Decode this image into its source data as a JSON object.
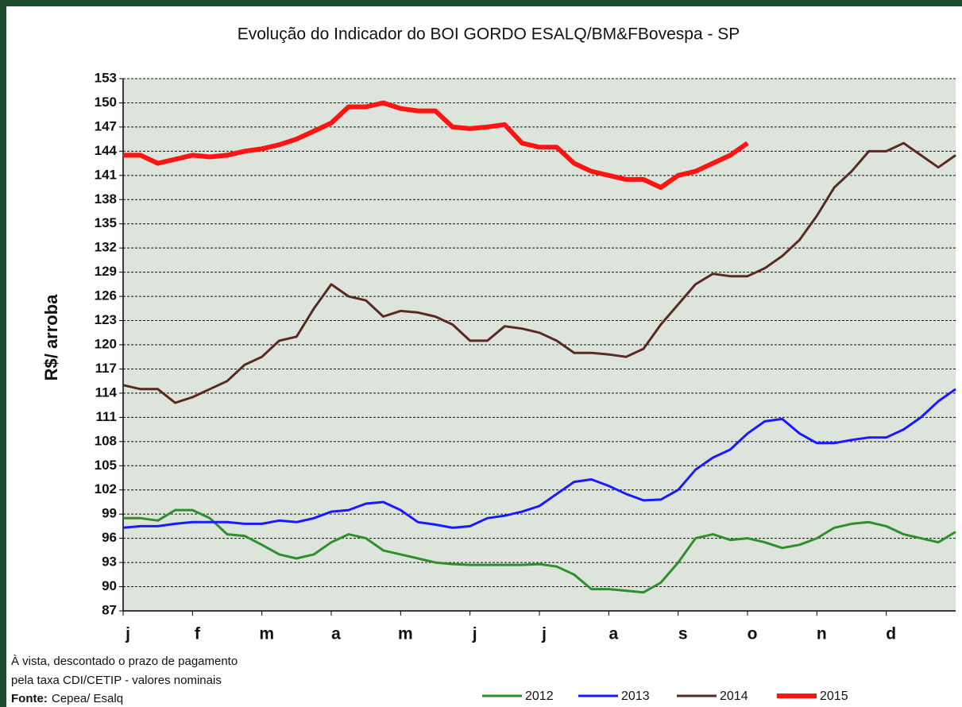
{
  "chart_data": {
    "type": "line",
    "title": "Evolução  do Indicador do BOI GORDO  ESALQ/BM&FBovespa   - SP",
    "y_label": "R$/ arroba",
    "categories": [
      "j",
      null,
      null,
      null,
      "f",
      null,
      null,
      null,
      "m",
      null,
      null,
      null,
      "a",
      null,
      null,
      null,
      "m",
      null,
      null,
      null,
      "j",
      null,
      null,
      null,
      "j",
      null,
      null,
      null,
      "a",
      null,
      null,
      null,
      "s",
      null,
      null,
      null,
      "o",
      null,
      null,
      null,
      "n",
      null,
      null,
      null,
      "d",
      null,
      null,
      null,
      null
    ],
    "ylim": [
      87,
      153
    ],
    "yticks": [
      87,
      90,
      93,
      96,
      99,
      102,
      105,
      108,
      111,
      114,
      117,
      120,
      123,
      126,
      129,
      132,
      135,
      138,
      141,
      144,
      147,
      150,
      153
    ],
    "grid": true,
    "legend": "bottom",
    "series": [
      {
        "name": "2012",
        "color": "#2f8f2f",
        "line_width": 3,
        "values": [
          98.5,
          98.5,
          98.2,
          99.5,
          99.5,
          98.5,
          96.5,
          96.3,
          95.2,
          94,
          93.5,
          94,
          95.5,
          96.5,
          96,
          94.5,
          94,
          93.5,
          93,
          92.8,
          92.7,
          92.7,
          92.7,
          92.7,
          92.8,
          92.5,
          91.5,
          89.7,
          89.7,
          89.5,
          89.3,
          90.5,
          93,
          96,
          96.5,
          95.8,
          96,
          95.5,
          94.8,
          95.2,
          96,
          97.3,
          97.8,
          98,
          97.5,
          96.5,
          96,
          95.5,
          96.8
        ]
      },
      {
        "name": "2013",
        "color": "#1a1aff",
        "line_width": 3,
        "values": [
          97.3,
          97.5,
          97.5,
          97.8,
          98,
          98,
          98,
          97.8,
          97.8,
          98.2,
          98,
          98.5,
          99.3,
          99.5,
          100.3,
          100.5,
          99.5,
          98,
          97.7,
          97.3,
          97.5,
          98.5,
          98.8,
          99.3,
          100,
          101.5,
          103,
          103.3,
          102.5,
          101.5,
          100.7,
          100.8,
          102,
          104.5,
          106,
          107,
          109,
          110.5,
          110.8,
          109,
          107.8,
          107.8,
          108.2,
          108.5,
          108.5,
          109.5,
          111,
          113,
          114.5
        ]
      },
      {
        "name": "2014",
        "color": "#5a2a20",
        "line_width": 3,
        "values": [
          115,
          114.5,
          114.5,
          112.8,
          113.5,
          114.5,
          115.5,
          117.5,
          118.5,
          120.5,
          121,
          124.5,
          127.5,
          126,
          125.5,
          123.5,
          124.2,
          124,
          123.5,
          122.5,
          120.5,
          120.5,
          122.3,
          122,
          121.5,
          120.5,
          119,
          119,
          118.8,
          118.5,
          119.5,
          122.5,
          125,
          127.5,
          128.8,
          128.5,
          128.5,
          129.5,
          131,
          133,
          136,
          139.5,
          141.5,
          144,
          144,
          145,
          143.5,
          142,
          143.5
        ]
      },
      {
        "name": "2015",
        "color": "#ff1414",
        "line_width": 6,
        "values": [
          143.5,
          143.5,
          142.5,
          143,
          143.5,
          143.3,
          143.5,
          144,
          144.3,
          144.8,
          145.5,
          146.5,
          147.5,
          149.5,
          149.5,
          150,
          149.3,
          149,
          149,
          147,
          146.8,
          147,
          147.3,
          145,
          144.5,
          144.5,
          142.5,
          141.5,
          141,
          140.5,
          140.5,
          139.5,
          141,
          141.5,
          142.5,
          143.5,
          145,
          null,
          null,
          null,
          null,
          null,
          null,
          null,
          null,
          null,
          null,
          null,
          null
        ]
      }
    ],
    "notes": [
      "À vista, descontado o prazo de pagamento",
      "pela taxa CDI/CETIP - valores nominais"
    ],
    "source_label": "Fonte:",
    "source": "Cepea/ Esalq"
  }
}
